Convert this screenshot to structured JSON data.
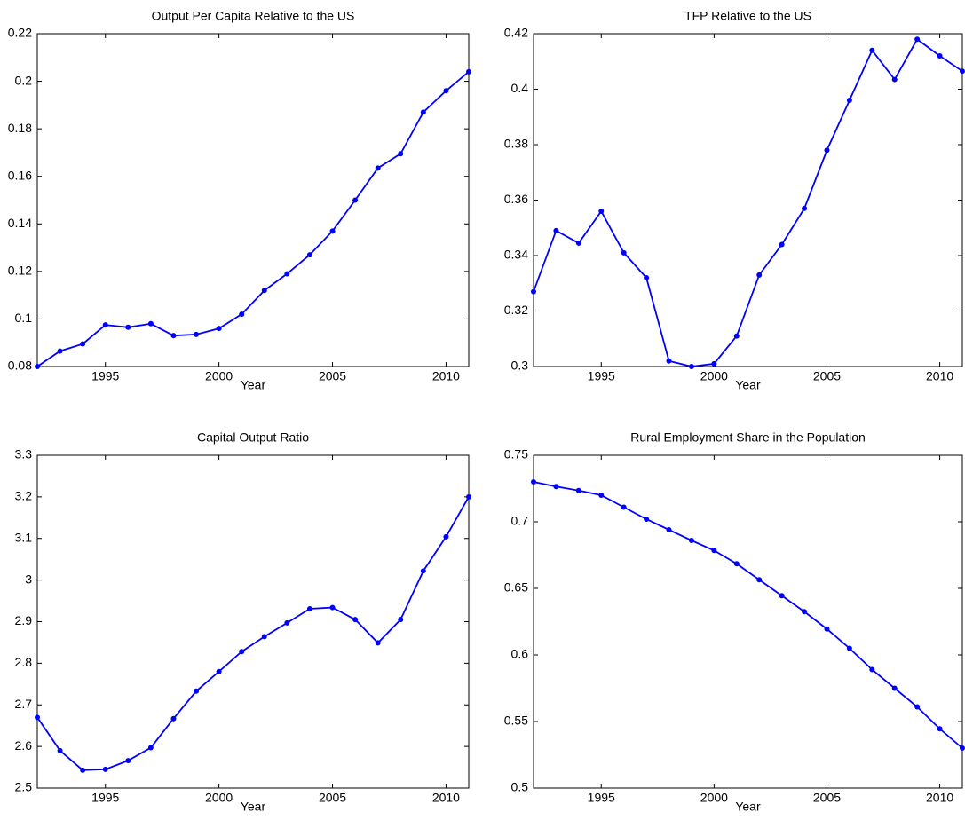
{
  "chart_data": [
    {
      "type": "line",
      "title": "Output Per Capita Relative to the US",
      "xlabel": "Year",
      "color": "#0000ff",
      "grid": false,
      "x": [
        1992,
        1993,
        1994,
        1995,
        1996,
        1997,
        1998,
        1999,
        2000,
        2001,
        2002,
        2003,
        2004,
        2005,
        2006,
        2007,
        2008,
        2009,
        2010,
        2011
      ],
      "values": [
        0.08,
        0.0865,
        0.0895,
        0.0975,
        0.0965,
        0.098,
        0.093,
        0.0935,
        0.096,
        0.102,
        0.112,
        0.119,
        0.127,
        0.137,
        0.15,
        0.1635,
        0.1695,
        0.187,
        0.196,
        0.204
      ],
      "xlim": [
        1992,
        2011
      ],
      "xticks": [
        1995,
        2000,
        2005,
        2010
      ],
      "ylim": [
        0.08,
        0.22
      ],
      "yticks": [
        0.08,
        0.1,
        0.12,
        0.14,
        0.16,
        0.18,
        0.2,
        0.22
      ]
    },
    {
      "type": "line",
      "title": "TFP Relative to the US",
      "xlabel": "Year",
      "color": "#0000ff",
      "grid": false,
      "x": [
        1992,
        1993,
        1994,
        1995,
        1996,
        1997,
        1998,
        1999,
        2000,
        2001,
        2002,
        2003,
        2004,
        2005,
        2006,
        2007,
        2008,
        2009,
        2010,
        2011
      ],
      "values": [
        0.327,
        0.349,
        0.3445,
        0.356,
        0.341,
        0.332,
        0.302,
        0.3,
        0.301,
        0.311,
        0.333,
        0.344,
        0.357,
        0.378,
        0.396,
        0.414,
        0.4035,
        0.418,
        0.412,
        0.4065
      ],
      "xlim": [
        1992,
        2011
      ],
      "xticks": [
        1995,
        2000,
        2005,
        2010
      ],
      "ylim": [
        0.3,
        0.42
      ],
      "yticks": [
        0.3,
        0.32,
        0.34,
        0.36,
        0.38,
        0.4,
        0.42
      ]
    },
    {
      "type": "line",
      "title": "Capital Output Ratio",
      "xlabel": "Year",
      "color": "#0000ff",
      "grid": false,
      "x": [
        1992,
        1993,
        1994,
        1995,
        1996,
        1997,
        1998,
        1999,
        2000,
        2001,
        2002,
        2003,
        2004,
        2005,
        2006,
        2007,
        2008,
        2009,
        2010,
        2011
      ],
      "values": [
        2.67,
        2.59,
        2.543,
        2.545,
        2.566,
        2.597,
        2.667,
        2.733,
        2.78,
        2.828,
        2.864,
        2.897,
        2.931,
        2.934,
        2.905,
        2.849,
        2.905,
        3.022,
        3.104,
        3.2
      ],
      "xlim": [
        1992,
        2011
      ],
      "xticks": [
        1995,
        2000,
        2005,
        2010
      ],
      "ylim": [
        2.5,
        3.3
      ],
      "yticks": [
        2.5,
        2.6,
        2.7,
        2.8,
        2.9,
        3,
        3.1,
        3.2,
        3.3
      ]
    },
    {
      "type": "line",
      "title": "Rural Employment Share in the Population",
      "xlabel": "Year",
      "color": "#0000ff",
      "grid": false,
      "x": [
        1992,
        1993,
        1994,
        1995,
        1996,
        1997,
        1998,
        1999,
        2000,
        2001,
        2002,
        2003,
        2004,
        2005,
        2006,
        2007,
        2008,
        2009,
        2010,
        2011
      ],
      "values": [
        0.73,
        0.7265,
        0.7235,
        0.72,
        0.711,
        0.702,
        0.694,
        0.686,
        0.6785,
        0.6685,
        0.6565,
        0.6445,
        0.6325,
        0.6195,
        0.605,
        0.589,
        0.575,
        0.561,
        0.5445,
        0.53
      ],
      "xlim": [
        1992,
        2011
      ],
      "xticks": [
        1995,
        2000,
        2005,
        2010
      ],
      "ylim": [
        0.5,
        0.75
      ],
      "yticks": [
        0.5,
        0.55,
        0.6,
        0.65,
        0.7,
        0.75
      ]
    }
  ]
}
